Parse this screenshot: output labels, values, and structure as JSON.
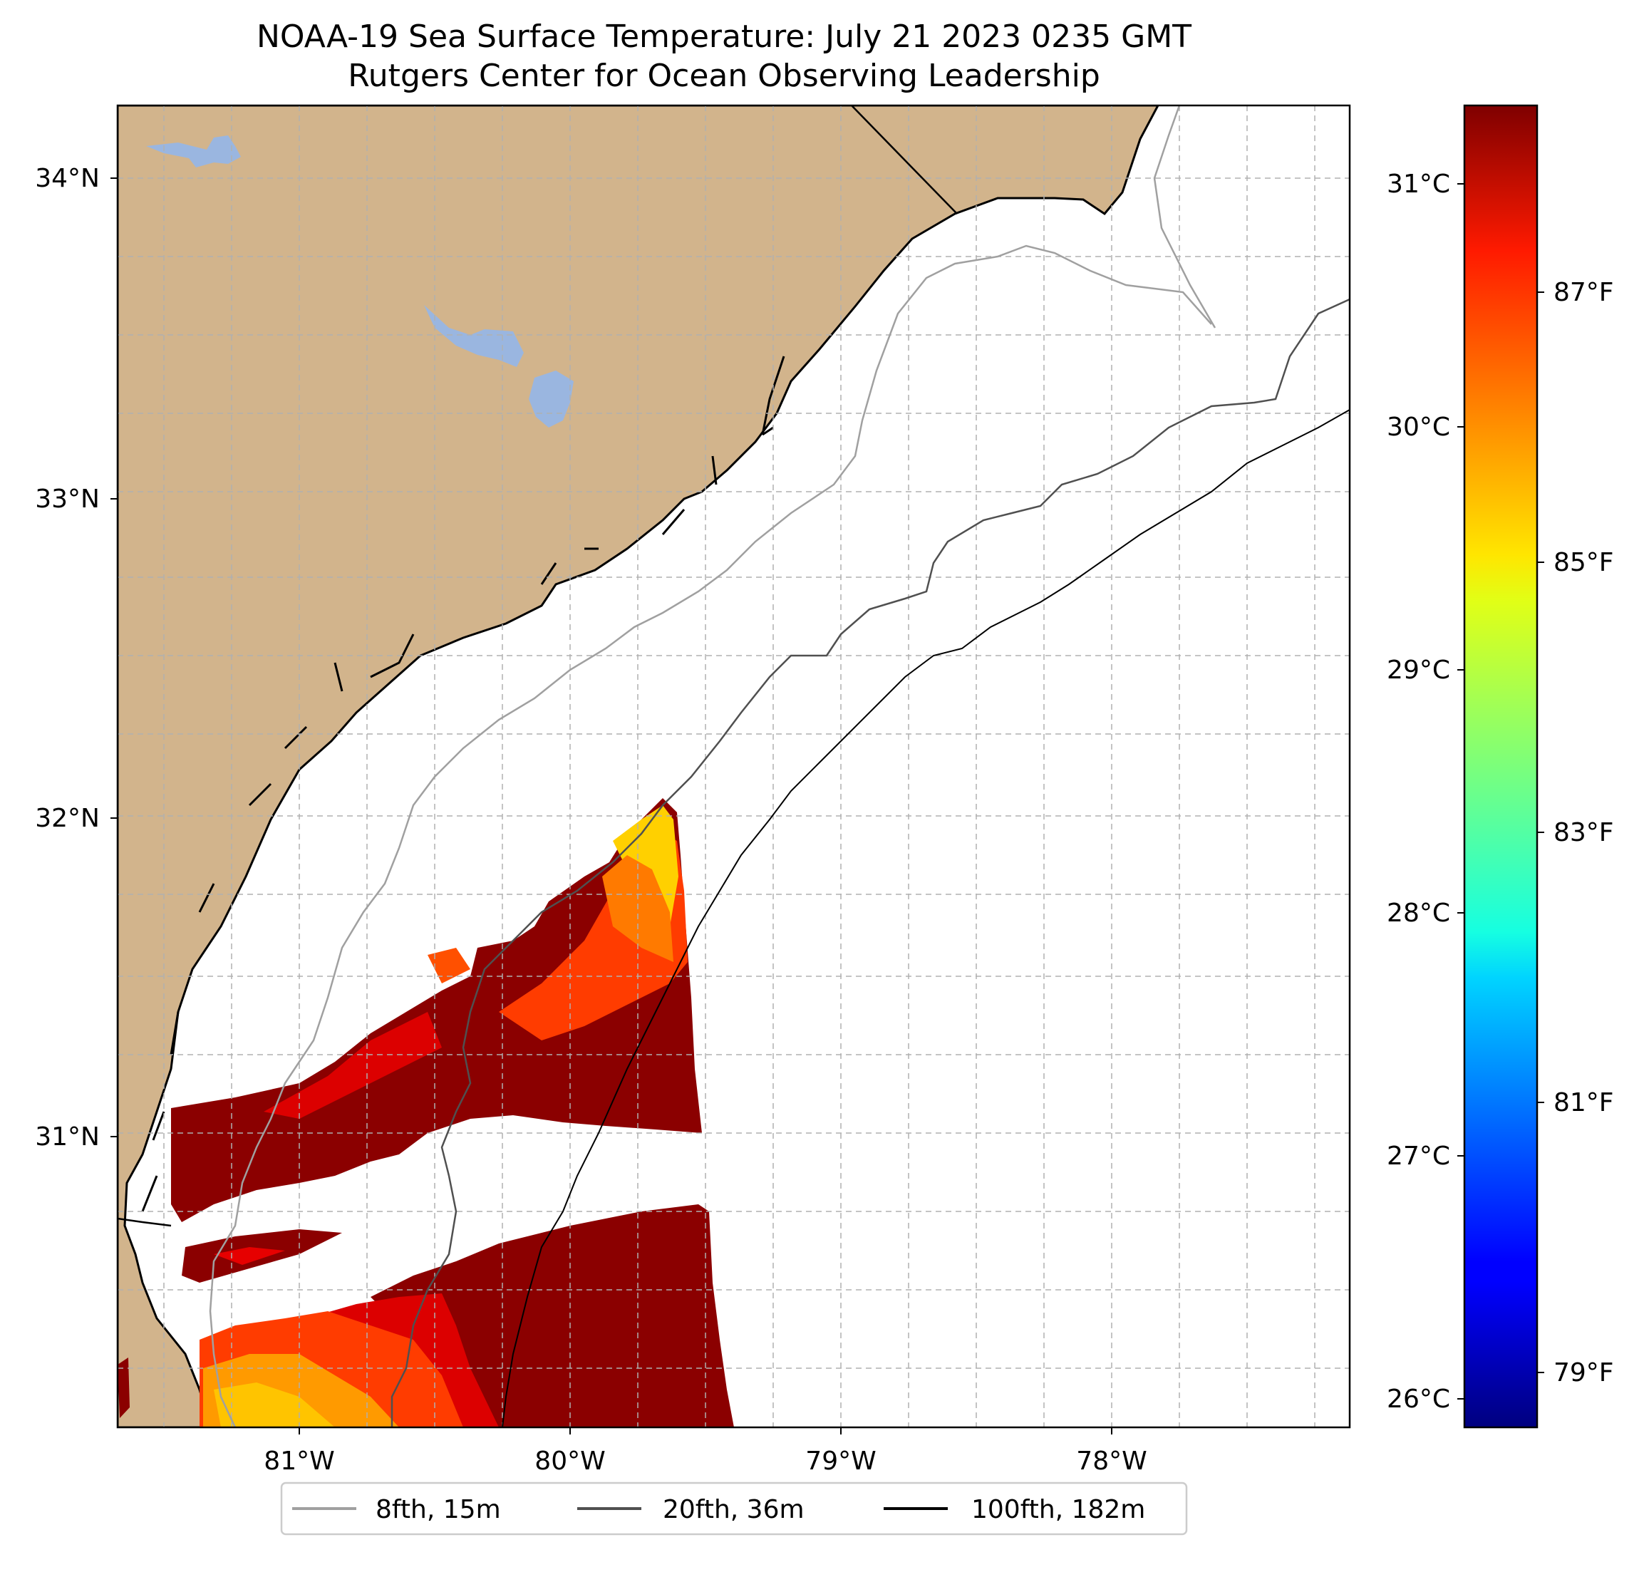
{
  "title": {
    "line1": "NOAA-19 Sea Surface Temperature: July 21 2023 0235 GMT",
    "line2": "Rutgers Center for Ocean Observing Leadership"
  },
  "colors": {
    "land": "#d2b48c",
    "lakes": "#9ab6e0",
    "grid": "#b0b0b0",
    "contour_8fth": "#a0a0a0",
    "contour_20fth": "#505050",
    "contour_100fth": "#000000"
  },
  "map": {
    "lat_ticks": [
      "34°N",
      "33°N",
      "32°N",
      "31°N"
    ],
    "lon_ticks": [
      "81°W",
      "80°W",
      "79°W",
      "78°W"
    ],
    "lon_range": [
      -81.68,
      -77.12
    ],
    "lat_range": [
      30.08,
      34.22
    ]
  },
  "colorbar": {
    "celsius_ticks": [
      "31°C",
      "30°C",
      "29°C",
      "28°C",
      "27°C",
      "26°C"
    ],
    "fahrenheit_ticks": [
      "87°F",
      "85°F",
      "83°F",
      "81°F",
      "79°F"
    ],
    "celsius_values": [
      31,
      30,
      29,
      28,
      27,
      26
    ],
    "fahrenheit_values": [
      87,
      85,
      83,
      81,
      79
    ],
    "range_c": [
      25.9,
      31.35
    ]
  },
  "legend": {
    "items": [
      {
        "label": "8fth, 15m",
        "color": "#a0a0a0"
      },
      {
        "label": "20fth, 36m",
        "color": "#505050"
      },
      {
        "label": "100fth, 182m",
        "color": "#000000"
      }
    ]
  }
}
